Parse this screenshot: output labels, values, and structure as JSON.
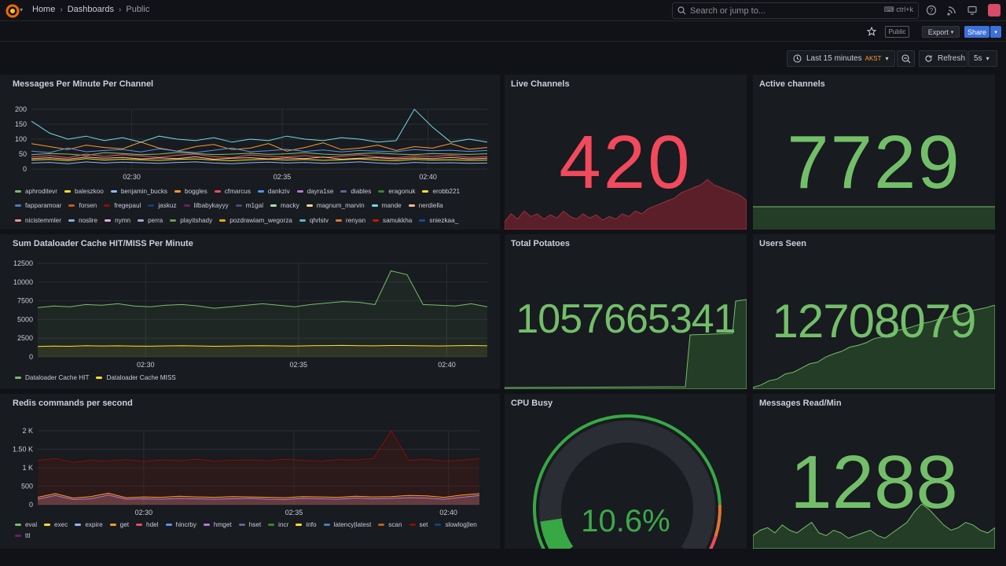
{
  "topbar": {
    "breadcrumbs": [
      "Home",
      "Dashboards",
      "Public"
    ],
    "search_placeholder": "Search or jump to...",
    "search_shortcut": "ctrl+k"
  },
  "toolbar": {
    "public_badge": "Public",
    "export_label": "Export",
    "share_label": "Share",
    "time_range": "Last 15 minutes",
    "timezone": "AKST",
    "refresh_label": "Refresh",
    "refresh_interval": "5s"
  },
  "panels": {
    "messages": {
      "title": "Messages Per Minute Per Channel",
      "legend": [
        {
          "name": "aphroditevr",
          "color": "#73bf69"
        },
        {
          "name": "baleszkoo",
          "color": "#fade2a"
        },
        {
          "name": "benjamin_bucks",
          "color": "#8ab8ff"
        },
        {
          "name": "boggles",
          "color": "#ff9830"
        },
        {
          "name": "cfmarcus",
          "color": "#f2495c"
        },
        {
          "name": "dankziv",
          "color": "#5794f2"
        },
        {
          "name": "dayra1se",
          "color": "#b877d9"
        },
        {
          "name": "diables",
          "color": "#705da0"
        },
        {
          "name": "eragonuk",
          "color": "#37872d"
        },
        {
          "name": "erobb221",
          "color": "#fade2a"
        },
        {
          "name": "fapparamoar",
          "color": "#447ebc"
        },
        {
          "name": "forsen",
          "color": "#c15c17"
        },
        {
          "name": "fregepaul",
          "color": "#890f02"
        },
        {
          "name": "jaskuz",
          "color": "#0a437c"
        },
        {
          "name": "lilbabykayyy",
          "color": "#6d1f62"
        },
        {
          "name": "m1gal",
          "color": "#584477"
        },
        {
          "name": "macky",
          "color": "#b7dbab"
        },
        {
          "name": "magnum_marvin",
          "color": "#f4d598"
        },
        {
          "name": "mande",
          "color": "#70dbed"
        },
        {
          "name": "nerdiella",
          "color": "#f9ba8f"
        },
        {
          "name": "nicistemmler",
          "color": "#f29191"
        },
        {
          "name": "noslire",
          "color": "#82b5d8"
        },
        {
          "name": "nymn",
          "color": "#e5a8e2"
        },
        {
          "name": "perra",
          "color": "#aea2e0"
        },
        {
          "name": "playitshady",
          "color": "#629e51"
        },
        {
          "name": "pozdrawiam_wegorza",
          "color": "#e5ac0e"
        },
        {
          "name": "qhrlstv",
          "color": "#64b0c8"
        },
        {
          "name": "renyan",
          "color": "#e0752d"
        },
        {
          "name": "samukkha",
          "color": "#bf1b00"
        },
        {
          "name": "sniezkaa_",
          "color": "#0a50a1"
        }
      ],
      "chart_data": {
        "type": "line",
        "x_ticks": [
          "02:30",
          "02:35",
          "02:40"
        ],
        "y_ticks": [
          0,
          50,
          100,
          150,
          200
        ],
        "ylim": [
          0,
          200
        ],
        "series": [
          {
            "name": "aphroditevr",
            "values": [
              48,
              52,
              50,
              45,
              55,
              52,
              48,
              50,
              56,
              52,
              48,
              50,
              53,
              49,
              51,
              55,
              50,
              47,
              52,
              54,
              50,
              48,
              52,
              50,
              49,
              51
            ]
          },
          {
            "name": "baleszkoo",
            "values": [
              30,
              32,
              28,
              35,
              30,
              33,
              31,
              29,
              32,
              34,
              30,
              28,
              31,
              33,
              30,
              32,
              29,
              31,
              34,
              30,
              28,
              32,
              30,
              31,
              29,
              30
            ]
          },
          {
            "name": "benjamin_bucks",
            "values": [
              20,
              22,
              18,
              24,
              20,
              23,
              21,
              19,
              22,
              24,
              20,
              18,
              21,
              23,
              20,
              22,
              19,
              21,
              24,
              20,
              18,
              22,
              20,
              21,
              19,
              20
            ]
          },
          {
            "name": "boggles",
            "values": [
              85,
              75,
              65,
              80,
              72,
              68,
              90,
              70,
              60,
              75,
              82,
              65,
              70,
              85,
              60,
              72,
              88,
              65,
              70,
              80,
              62,
              75,
              70,
              85,
              66,
              72
            ]
          },
          {
            "name": "cfmarcus",
            "values": [
              40,
              45,
              38,
              50,
              42,
              48,
              44,
              39,
              46,
              50,
              41,
              38,
              47,
              43,
              40,
              45,
              39,
              42,
              48,
              40,
              38,
              44,
              42,
              46,
              39,
              41
            ]
          },
          {
            "name": "dankziv",
            "values": [
              60,
              55,
              70,
              58,
              62,
              65,
              57,
              68,
              60,
              55,
              63,
              70,
              58,
              61,
              66,
              59,
              64,
              57,
              62,
              60,
              58,
              65,
              61,
              63,
              59,
              62
            ]
          },
          {
            "name": "mande",
            "values": [
              160,
              120,
              100,
              110,
              95,
              105,
              90,
              110,
              100,
              95,
              105,
              90,
              100,
              95,
              110,
              100,
              95,
              105,
              100,
              90,
              95,
              200,
              140,
              90,
              100,
              90
            ]
          },
          {
            "name": "nerdiella",
            "values": [
              35,
              38,
              33,
              40,
              36,
              39,
              34,
              37,
              35,
              41,
              33,
              36,
              38,
              34,
              37,
              35,
              40,
              33,
              36,
              38,
              34,
              37,
              35,
              39,
              34,
              36
            ]
          }
        ]
      }
    },
    "cache": {
      "title": "Sum Dataloader Cache HIT/MISS Per Minute",
      "legend": [
        {
          "name": "Dataloader Cache HIT",
          "color": "#73bf69"
        },
        {
          "name": "Dataloader Cache MISS",
          "color": "#fade2a"
        }
      ],
      "chart_data": {
        "type": "line",
        "x_ticks": [
          "02:30",
          "02:35",
          "02:40"
        ],
        "y_ticks": [
          0,
          2500,
          5000,
          7500,
          10000,
          12500
        ],
        "ylim": [
          0,
          12500
        ],
        "series": [
          {
            "name": "Dataloader Cache HIT",
            "values": [
              6600,
              6800,
              6700,
              7000,
              6900,
              7100,
              6800,
              6700,
              6900,
              7000,
              6800,
              6500,
              6700,
              6900,
              7100,
              6900,
              6700,
              7000,
              7200,
              7400,
              7300,
              7000,
              11500,
              11000,
              7000,
              6900,
              6800,
              7100,
              6700
            ]
          },
          {
            "name": "Dataloader Cache MISS",
            "values": [
              1400,
              1450,
              1420,
              1500,
              1460,
              1480,
              1450,
              1430,
              1470,
              1500,
              1460,
              1420,
              1450,
              1480,
              1500,
              1470,
              1450,
              1490,
              1510,
              1530,
              1500,
              1480,
              1520,
              1510,
              1480,
              1460,
              1500,
              1520,
              1480
            ]
          }
        ]
      }
    },
    "redis": {
      "title": "Redis commands per second",
      "legend": [
        {
          "name": "eval",
          "color": "#73bf69"
        },
        {
          "name": "exec",
          "color": "#fade2a"
        },
        {
          "name": "expire",
          "color": "#8ab8ff"
        },
        {
          "name": "get",
          "color": "#ff9830"
        },
        {
          "name": "hdel",
          "color": "#f2495c"
        },
        {
          "name": "hincrby",
          "color": "#5794f2"
        },
        {
          "name": "hmget",
          "color": "#b877d9"
        },
        {
          "name": "hset",
          "color": "#705da0"
        },
        {
          "name": "incr",
          "color": "#37872d"
        },
        {
          "name": "info",
          "color": "#fade2a"
        },
        {
          "name": "latency|latest",
          "color": "#447ebc"
        },
        {
          "name": "scan",
          "color": "#c15c17"
        },
        {
          "name": "set",
          "color": "#890f02"
        },
        {
          "name": "slowlog|len",
          "color": "#0a437c"
        },
        {
          "name": "ttl",
          "color": "#6d1f62"
        }
      ],
      "chart_data": {
        "type": "area",
        "x_ticks": [
          "02:30",
          "02:35",
          "02:40"
        ],
        "y_ticks": [
          "0",
          "500",
          "1 K",
          "1.50 K",
          "2 K"
        ],
        "ylim": [
          0,
          2000
        ],
        "series": [
          {
            "name": "set",
            "values": [
              1200,
              1250,
              1150,
              1200,
              1180,
              1220,
              1170,
              1210,
              1190,
              1230,
              1180,
              1200,
              1210,
              1190,
              1230,
              1200,
              1180,
              1220,
              1210,
              1250,
              2000,
              1200,
              1230,
              1180,
              1200,
              1250
            ]
          },
          {
            "name": "get",
            "values": [
              200,
              300,
              180,
              220,
              310,
              190,
              210,
              200,
              230,
              210,
              200,
              220,
              210,
              200,
              190,
              220,
              210,
              200,
              230,
              210,
              220,
              250,
              240,
              200,
              260,
              300
            ]
          },
          {
            "name": "hmget",
            "values": [
              150,
              250,
              140,
              160,
              260,
              150,
              160,
              150,
              170,
              160,
              150,
              160,
              170,
              150,
              140,
              170,
              160,
              150,
              180,
              160,
              170,
              190,
              180,
              150,
              200,
              250
            ]
          }
        ]
      }
    },
    "live_channels": {
      "title": "Live Channels",
      "value": "420"
    },
    "active_channels": {
      "title": "Active channels",
      "value": "7729"
    },
    "total_potatoes": {
      "title": "Total Potatoes",
      "value": "1057665341"
    },
    "users_seen": {
      "title": "Users Seen",
      "value": "12708079"
    },
    "cpu_busy": {
      "title": "CPU Busy",
      "value": "10.6%",
      "percent": 10.6
    },
    "messages_read": {
      "title": "Messages Read/Min",
      "value": "1288"
    }
  },
  "colors": {
    "green": "#73bf69",
    "red": "#f2495c",
    "panel_bg": "#181b1f",
    "blue": "#3d71d9"
  }
}
